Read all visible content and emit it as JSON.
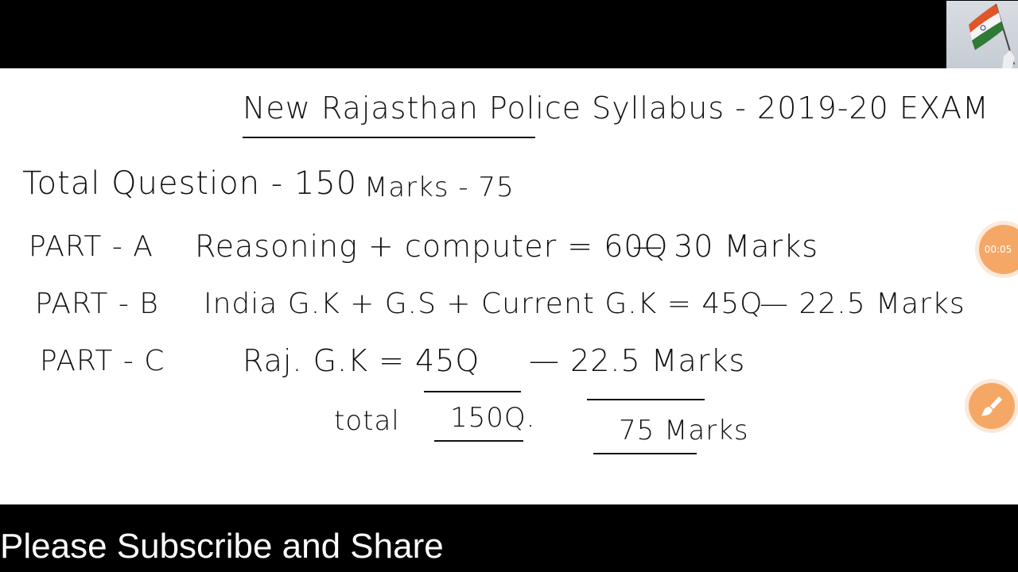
{
  "board": {
    "title": "New Rajasthan Police Syllabus - 2019-20 EXAM",
    "summary_questions": "Total Question - 150",
    "summary_marks": "Marks - 75",
    "rows": [
      {
        "part": "PART - A",
        "subject": "Reasoning + computer = 60Q",
        "marks": "— 30 Marks"
      },
      {
        "part": "PART - B",
        "subject": "India G.K + G.S + Current G.K = 45Q",
        "marks": "— 22.5 Marks"
      },
      {
        "part": "PART - C",
        "subject": "Raj. G.K = 45Q",
        "marks": "— 22.5 Marks"
      }
    ],
    "total_label": "total",
    "total_questions": "150Q.",
    "total_marks": "75 Marks"
  },
  "recorder": {
    "timer": "00:05",
    "brush_icon": "paintbrush-icon",
    "accent": "#f5a866"
  },
  "thumbnail": {
    "icon": "indian-flag-image"
  },
  "caption": "Please Subscribe and Share"
}
